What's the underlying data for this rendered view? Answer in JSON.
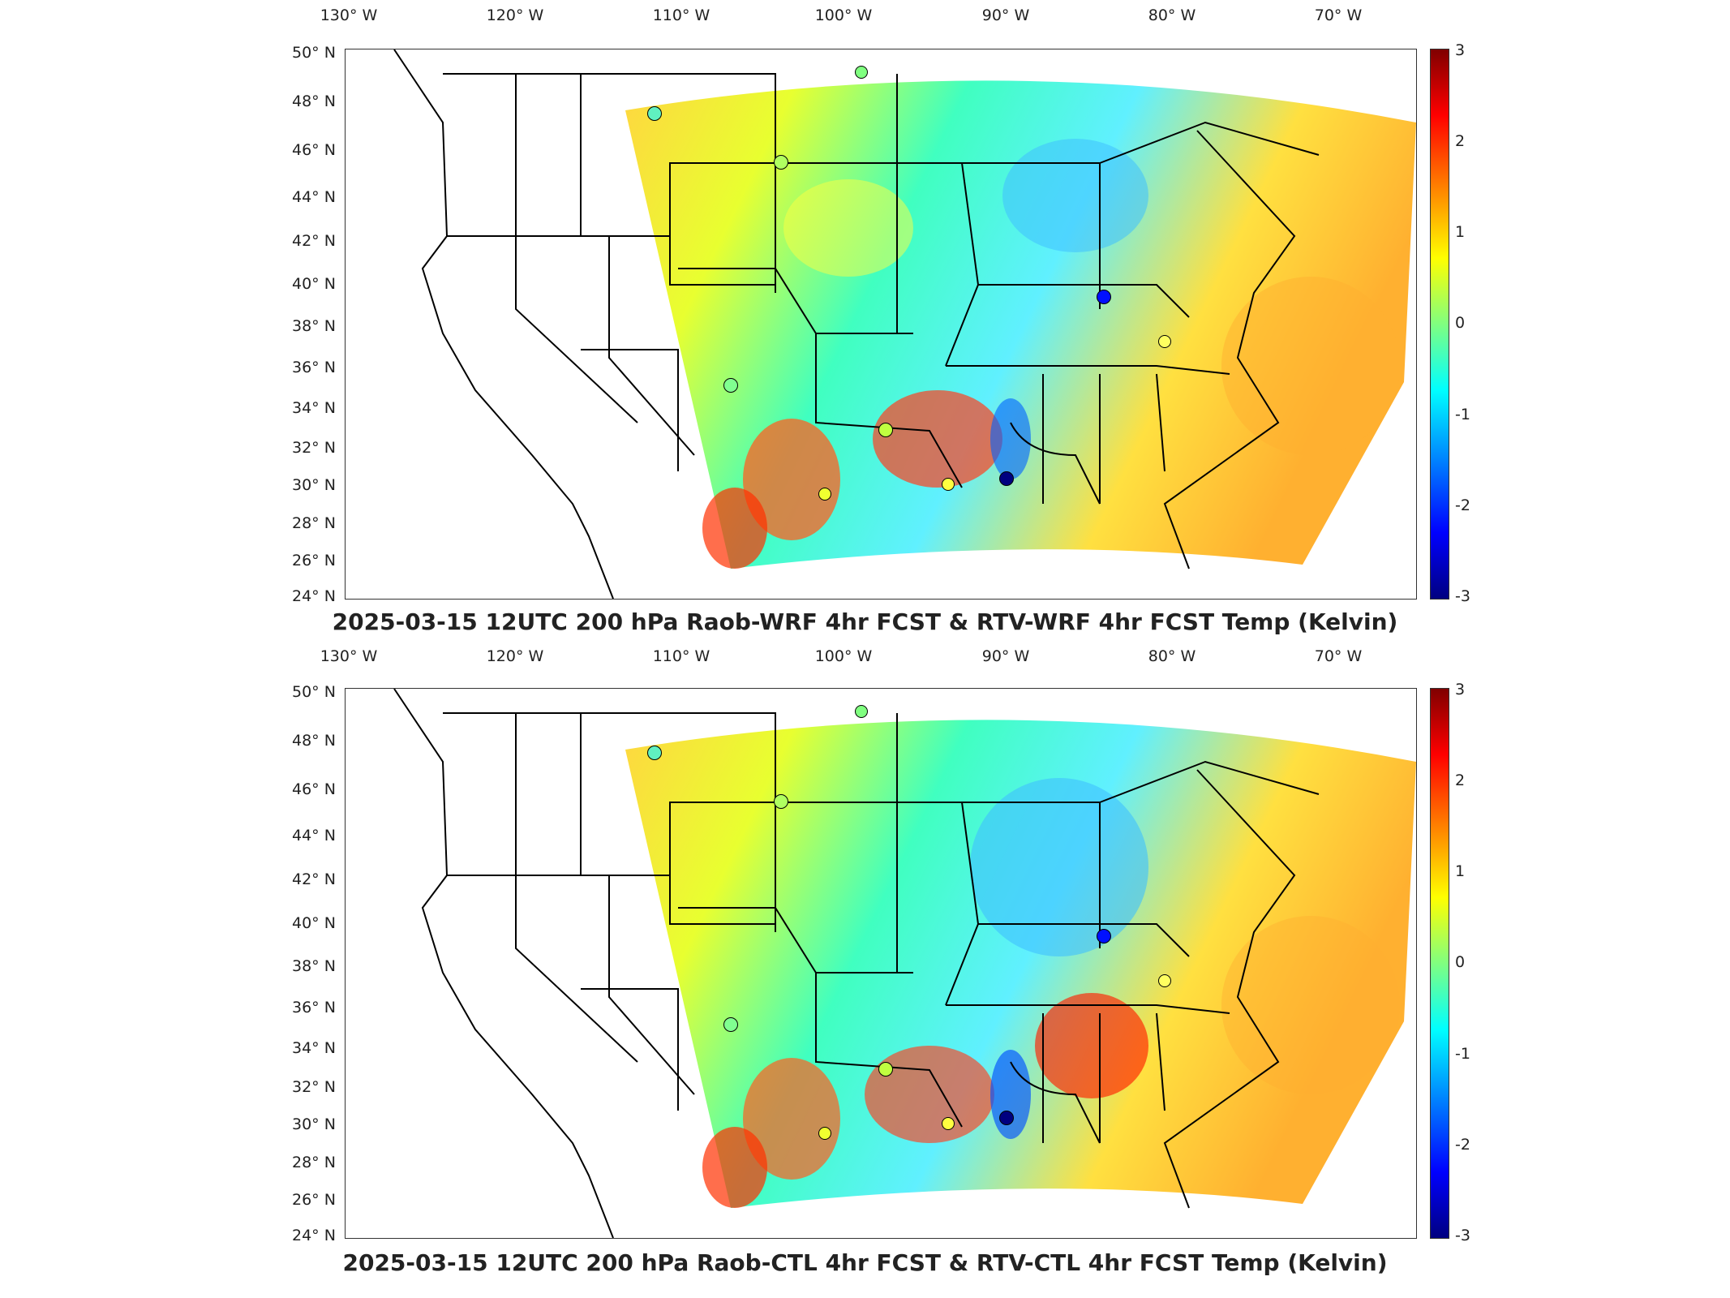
{
  "longitude_labels": [
    "130° W",
    "120° W",
    "110° W",
    "100° W",
    "90° W",
    "80° W",
    "70° W"
  ],
  "latitude_labels": [
    "50° N",
    "48° N",
    "46° N",
    "44° N",
    "42° N",
    "40° N",
    "38° N",
    "36° N",
    "34° N",
    "32° N",
    "30° N",
    "28° N",
    "26° N",
    "24° N"
  ],
  "colorbar": {
    "ticks": [
      "3",
      "2",
      "1",
      "0",
      "-1",
      "-2",
      "-3"
    ],
    "colormap": "jet",
    "range": [
      -3,
      3
    ]
  },
  "panels": [
    {
      "title": "2025-03-15 12UTC 200 hPa Raob-WRF 4hr FCST & RTV-WRF 4hr FCST Temp (Kelvin)"
    },
    {
      "title": "2025-03-15 12UTC 200 hPa Raob-CTL 4hr FCST & RTV-CTL 4hr FCST Temp (Kelvin)"
    }
  ],
  "colors": {
    "dark-red": "#800000",
    "red": "#ff0000",
    "orange": "#ff8000",
    "yellow": "#ffff00",
    "green": "#80ff80",
    "cyan": "#00ffff",
    "blue": "#0080ff",
    "dark-blue": "#000080"
  }
}
